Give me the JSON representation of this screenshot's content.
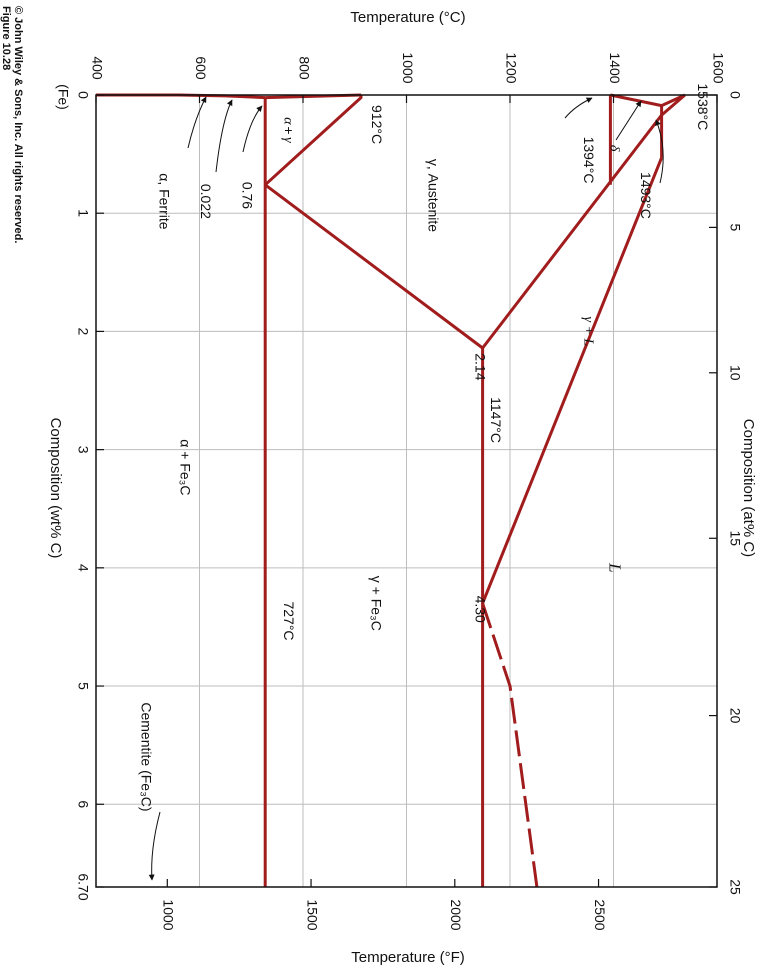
{
  "credit": {
    "figure": "Figure 10.28",
    "copyright": "© John Wiley & Sons, Inc. All rights reserved."
  },
  "colors": {
    "phase_line": "#a11c1c",
    "grid": "#bdbdbd",
    "frame": "#111111",
    "text": "#111111"
  },
  "chart_data": {
    "type": "line",
    "title": "",
    "xlabel": "Composition (wt% C)",
    "ylabel": "Temperature (°C)",
    "x2label": "Composition (at% C)",
    "y2label": "Temperature (°F)",
    "xlim": [
      0,
      6.7
    ],
    "ylim": [
      400,
      1600
    ],
    "grid": true,
    "x_ticks": [
      "0",
      "1",
      "2",
      "3",
      "4",
      "5",
      "6",
      "6.70"
    ],
    "x_tick_values": [
      0,
      1,
      2,
      3,
      4,
      5,
      6,
      6.7
    ],
    "x_zero_note": "(Fe)",
    "y_ticks": [
      "400",
      "600",
      "800",
      "1000",
      "1200",
      "1400",
      "1600"
    ],
    "y_tick_values": [
      400,
      600,
      800,
      1000,
      1200,
      1400,
      1600
    ],
    "at_ticks": [
      "0",
      "5",
      "10",
      "15",
      "20",
      "25"
    ],
    "at_tick_wt": [
      0,
      1.12,
      2.35,
      3.75,
      5.25,
      6.7
    ],
    "f_ticks": [
      "1000",
      "1500",
      "2000",
      "2500"
    ],
    "f_tick_values": [
      1000,
      1500,
      2000,
      2500
    ],
    "series": [
      {
        "style": "solid",
        "x": [
          0,
          0.09,
          0.17,
          0.53
        ],
        "y": [
          1538,
          1493,
          1493,
          1493
        ]
      },
      {
        "style": "solid",
        "x": [
          0,
          0.09
        ],
        "y": [
          1394,
          1493
        ]
      },
      {
        "style": "solid",
        "x": [
          0,
          0.17
        ],
        "y": [
          1538,
          1493
        ]
      },
      {
        "style": "solid",
        "x": [
          0.53,
          4.3
        ],
        "y": [
          1493,
          1147
        ]
      },
      {
        "style": "solid",
        "x": [
          0.17,
          2.14
        ],
        "y": [
          1493,
          1147
        ]
      },
      {
        "style": "solid",
        "x": [
          2.14,
          6.7
        ],
        "y": [
          1147,
          1147
        ]
      },
      {
        "style": "dashed",
        "x": [
          4.3,
          5.0,
          6.7
        ],
        "y": [
          1147,
          1200,
          1252
        ]
      },
      {
        "style": "solid",
        "x": [
          0,
          0.76
        ],
        "y": [
          1394,
          1394
        ]
      },
      {
        "style": "solid",
        "x": [
          0.76,
          2.14
        ],
        "y": [
          727,
          1147
        ]
      },
      {
        "style": "solid",
        "x": [
          0,
          0.022,
          0.76
        ],
        "y": [
          912,
          912,
          727
        ]
      },
      {
        "style": "solid",
        "x": [
          0,
          0.022
        ],
        "y": [
          912,
          727
        ]
      },
      {
        "style": "solid",
        "x": [
          0.022,
          6.7
        ],
        "y": [
          727,
          727
        ]
      },
      {
        "style": "solid",
        "x": [
          0,
          0.0,
          0.008,
          0.022
        ],
        "y": [
          400,
          560,
          650,
          727
        ]
      }
    ],
    "annotations": [
      {
        "id": "t1538",
        "text": "1538°C",
        "x": 0.1,
        "y": 1570
      },
      {
        "id": "t1493",
        "text": "1493°C",
        "x": 0.85,
        "y": 1460
      },
      {
        "id": "t1394",
        "text": "1394°C",
        "x": 0.55,
        "y": 1350
      },
      {
        "id": "delta",
        "text": "δ",
        "x": 0.45,
        "y": 1400
      },
      {
        "id": "t912",
        "text": "912°C",
        "x": 0.25,
        "y": 940
      },
      {
        "id": "austenite",
        "text": "γ, Austenite",
        "x": 0.85,
        "y": 1050
      },
      {
        "id": "gammaL",
        "text": "γ + L",
        "x": 2.0,
        "y": 1350
      },
      {
        "id": "L",
        "text": "L",
        "x": 4.0,
        "y": 1400
      },
      {
        "id": "c214",
        "text": "2.14",
        "x": 2.3,
        "y": 1140
      },
      {
        "id": "t1147",
        "text": "1147°C",
        "x": 2.75,
        "y": 1170
      },
      {
        "id": "c430",
        "text": "4.30",
        "x": 4.35,
        "y": 1140
      },
      {
        "id": "gammaFe3C",
        "text": "γ + Fe₃C",
        "x": 4.3,
        "y": 940
      },
      {
        "id": "t727",
        "text": "727°C",
        "x": 4.45,
        "y": 770
      },
      {
        "id": "alphaFe3C",
        "text": "α + Fe₃C",
        "x": 3.15,
        "y": 570
      },
      {
        "id": "alpha",
        "text": "α",
        "x": 0.22,
        "y": 770
      },
      {
        "id": "plus",
        "text": "+",
        "x": 0.3,
        "y": 770
      },
      {
        "id": "gamma",
        "text": "γ",
        "x": 0.38,
        "y": 770
      },
      {
        "id": "c076",
        "text": "0.76",
        "x": 0.85,
        "y": 690
      },
      {
        "id": "c0022",
        "text": "0.022",
        "x": 0.9,
        "y": 610
      },
      {
        "id": "ferrite",
        "text": "α, Ferrite",
        "x": 0.9,
        "y": 530
      },
      {
        "id": "cementite",
        "text": "Cementite (Fe₃C)",
        "x": 5.6,
        "y": 495
      }
    ]
  }
}
